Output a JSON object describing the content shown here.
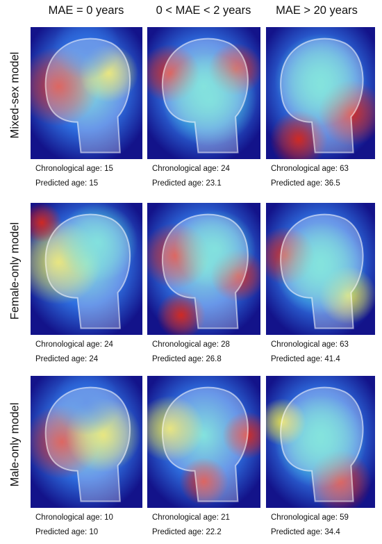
{
  "columns": [
    "MAE = 0 years",
    "0 < MAE < 2 years",
    "MAE > 20 years"
  ],
  "rows": [
    "Mixed-sex model",
    "Female-only model",
    "Male-only model"
  ],
  "caption_labels": {
    "chronological": "Chronological age: ",
    "predicted": "Predicted age: "
  },
  "panels": [
    [
      {
        "chronological": "15",
        "predicted": "15"
      },
      {
        "chronological": "24",
        "predicted": "23.1"
      },
      {
        "chronological": "63",
        "predicted": "36.5"
      }
    ],
    [
      {
        "chronological": "24",
        "predicted": "24"
      },
      {
        "chronological": "28",
        "predicted": "26.8"
      },
      {
        "chronological": "63",
        "predicted": "41.4"
      }
    ],
    [
      {
        "chronological": "10",
        "predicted": "10"
      },
      {
        "chronological": "21",
        "predicted": "22.2"
      },
      {
        "chronological": "59",
        "predicted": "34.4"
      }
    ]
  ],
  "colors": {
    "cold": "#13138a",
    "cool": "#2f6fe0",
    "mid": "#55d8d0",
    "warm": "#e8e04a",
    "hot": "#d8281c"
  }
}
